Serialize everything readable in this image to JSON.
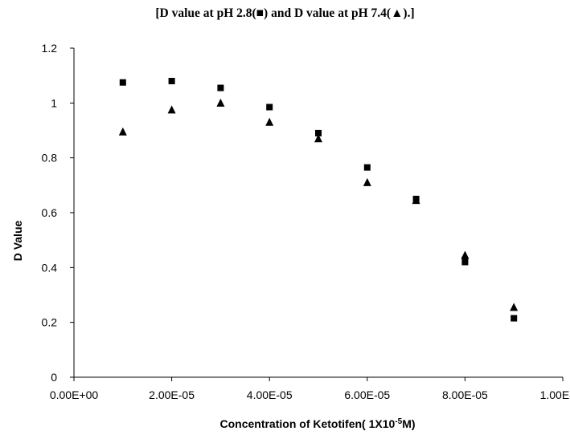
{
  "chart_data": {
    "type": "scatter",
    "title": "[D value at pH 2.8(■) and D value at pH 7.4(▲).]",
    "xlabel": "Concentration of Ketotifen( 1X10",
    "xlabel_sup": "-5",
    "xlabel_tail": "M)",
    "ylabel": "D Value",
    "xlim": [
      0,
      0.0001
    ],
    "ylim": [
      0,
      1.2
    ],
    "x_ticks": [
      "0.00E+00",
      "2.00E-05",
      "4.00E-05",
      "6.00E-05",
      "8.00E-05",
      "1.00E-04"
    ],
    "y_ticks": [
      "0",
      "0.2",
      "0.4",
      "0.6",
      "0.8",
      "1",
      "1.2"
    ],
    "grid": false,
    "series": [
      {
        "marker": "square",
        "color": "#000000",
        "points": [
          {
            "x": 1e-05,
            "y": 1.075
          },
          {
            "x": 2e-05,
            "y": 1.08
          },
          {
            "x": 3e-05,
            "y": 1.055
          },
          {
            "x": 4e-05,
            "y": 0.985
          },
          {
            "x": 5e-05,
            "y": 0.89
          },
          {
            "x": 6e-05,
            "y": 0.765
          },
          {
            "x": 7e-05,
            "y": 0.65
          },
          {
            "x": 8e-05,
            "y": 0.42
          },
          {
            "x": 9e-05,
            "y": 0.215
          }
        ]
      },
      {
        "marker": "triangle",
        "color": "#000000",
        "points": [
          {
            "x": 1e-05,
            "y": 0.895
          },
          {
            "x": 2e-05,
            "y": 0.975
          },
          {
            "x": 3e-05,
            "y": 1.0
          },
          {
            "x": 4e-05,
            "y": 0.93
          },
          {
            "x": 5e-05,
            "y": 0.87
          },
          {
            "x": 6e-05,
            "y": 0.71
          },
          {
            "x": 7e-05,
            "y": 0.645
          },
          {
            "x": 8e-05,
            "y": 0.445
          },
          {
            "x": 9e-05,
            "y": 0.255
          }
        ]
      }
    ]
  }
}
